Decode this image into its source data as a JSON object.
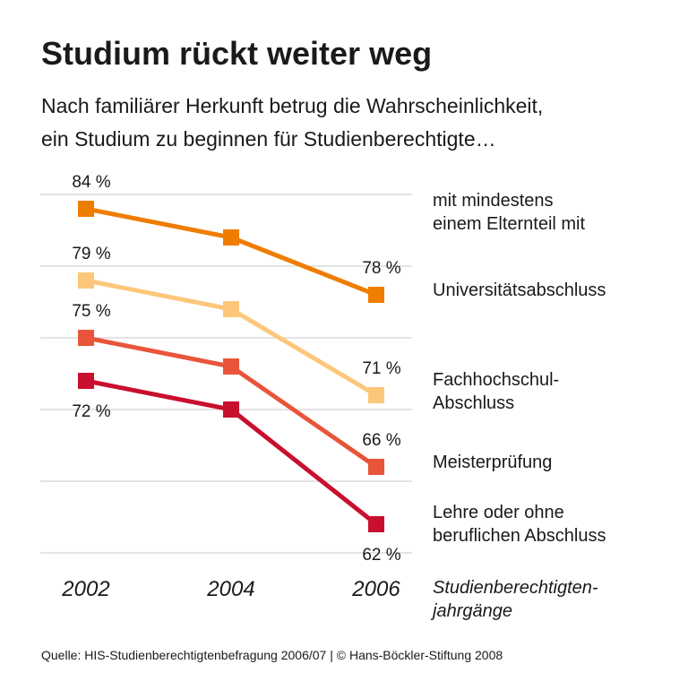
{
  "chart_data": {
    "type": "line",
    "title": "Studium rückt weiter weg",
    "subtitle": "Nach familiärer Herkunft betrug die Wahrscheinlichkeit,\nein Studium zu beginnen für Studienberechtigte…",
    "legend_title": "mit mindestens\neinem Elternteil mit",
    "categories": [
      "2002",
      "2004",
      "2006"
    ],
    "xlabel": "Studienberechtigten-\njahrgänge",
    "ylim": [
      58,
      87
    ],
    "yticks": [
      60,
      65,
      70,
      75,
      80,
      85
    ],
    "grid": true,
    "series": [
      {
        "name": "Universitätsabschluss",
        "color": "#ee7d00",
        "values": [
          84,
          82,
          78
        ],
        "value_labels": [
          "84 %",
          null,
          "78 %"
        ]
      },
      {
        "name": "Fachhochschul-\nAbschluss",
        "color": "#fcc77a",
        "values": [
          79,
          77,
          71
        ],
        "value_labels": [
          "79 %",
          null,
          "71 %"
        ]
      },
      {
        "name": "Meisterprüfung",
        "color": "#e8553a",
        "values": [
          75,
          73,
          66
        ],
        "value_labels": [
          "75 %",
          null,
          "66 %"
        ]
      },
      {
        "name": "Lehre oder ohne\nberuflichen Abschluss",
        "color": "#c8102e",
        "values": [
          72,
          70,
          62
        ],
        "value_labels": [
          "72 %",
          null,
          "62 %"
        ]
      }
    ],
    "source": "Quelle: HIS-Studienberechtigtenbefragung 2006/07 | © Hans-Böckler-Stiftung 2008"
  }
}
